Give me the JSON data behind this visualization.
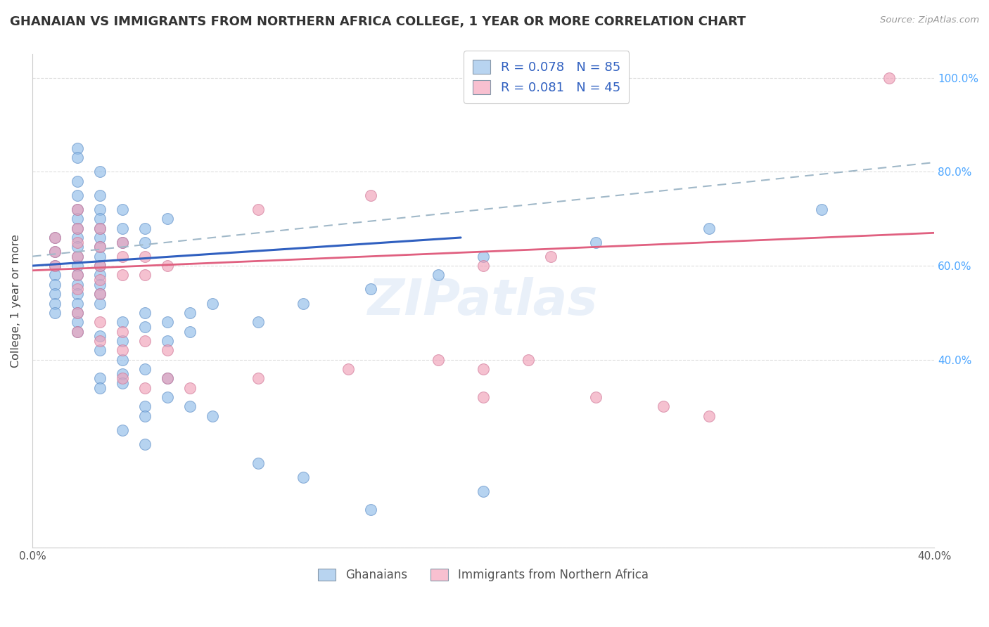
{
  "title": "GHANAIAN VS IMMIGRANTS FROM NORTHERN AFRICA COLLEGE, 1 YEAR OR MORE CORRELATION CHART",
  "source_text": "Source: ZipAtlas.com",
  "ylabel": "College, 1 year or more",
  "xlabel": "",
  "xlim": [
    0.0,
    0.4
  ],
  "ylim": [
    0.0,
    1.05
  ],
  "x_tick_labels": [
    "0.0%",
    "",
    "",
    "",
    "40.0%"
  ],
  "x_ticks": [
    0.0,
    0.1,
    0.2,
    0.3,
    0.4
  ],
  "y_ticks": [
    0.0,
    0.4,
    0.6,
    0.8,
    1.0
  ],
  "y_tick_labels": [
    "",
    "40.0%",
    "60.0%",
    "80.0%",
    "100.0%"
  ],
  "watermark": "ZIPatlas",
  "legend_labels": [
    "Ghanaians",
    "Immigrants from Northern Africa"
  ],
  "blue_color": "#90bce8",
  "pink_color": "#f0a0b8",
  "blue_line_color": "#3060c0",
  "pink_line_color": "#e06080",
  "dashed_line_color": "#a0b8c8",
  "blue_points": [
    [
      0.01,
      0.66
    ],
    [
      0.01,
      0.63
    ],
    [
      0.01,
      0.6
    ],
    [
      0.01,
      0.58
    ],
    [
      0.01,
      0.56
    ],
    [
      0.01,
      0.54
    ],
    [
      0.01,
      0.52
    ],
    [
      0.01,
      0.5
    ],
    [
      0.02,
      0.78
    ],
    [
      0.02,
      0.75
    ],
    [
      0.02,
      0.72
    ],
    [
      0.02,
      0.7
    ],
    [
      0.02,
      0.68
    ],
    [
      0.02,
      0.66
    ],
    [
      0.02,
      0.64
    ],
    [
      0.02,
      0.62
    ],
    [
      0.02,
      0.6
    ],
    [
      0.02,
      0.58
    ],
    [
      0.02,
      0.56
    ],
    [
      0.02,
      0.54
    ],
    [
      0.02,
      0.52
    ],
    [
      0.02,
      0.5
    ],
    [
      0.02,
      0.48
    ],
    [
      0.02,
      0.46
    ],
    [
      0.03,
      0.75
    ],
    [
      0.03,
      0.72
    ],
    [
      0.03,
      0.7
    ],
    [
      0.03,
      0.68
    ],
    [
      0.03,
      0.66
    ],
    [
      0.03,
      0.64
    ],
    [
      0.03,
      0.62
    ],
    [
      0.03,
      0.6
    ],
    [
      0.03,
      0.58
    ],
    [
      0.03,
      0.56
    ],
    [
      0.03,
      0.54
    ],
    [
      0.03,
      0.52
    ],
    [
      0.04,
      0.72
    ],
    [
      0.04,
      0.68
    ],
    [
      0.04,
      0.65
    ],
    [
      0.05,
      0.68
    ],
    [
      0.05,
      0.65
    ],
    [
      0.06,
      0.7
    ],
    [
      0.02,
      0.85
    ],
    [
      0.02,
      0.83
    ],
    [
      0.03,
      0.8
    ],
    [
      0.04,
      0.48
    ],
    [
      0.04,
      0.44
    ],
    [
      0.05,
      0.5
    ],
    [
      0.05,
      0.47
    ],
    [
      0.06,
      0.48
    ],
    [
      0.06,
      0.44
    ],
    [
      0.07,
      0.5
    ],
    [
      0.07,
      0.46
    ],
    [
      0.08,
      0.52
    ],
    [
      0.03,
      0.45
    ],
    [
      0.03,
      0.42
    ],
    [
      0.04,
      0.4
    ],
    [
      0.04,
      0.37
    ],
    [
      0.05,
      0.38
    ],
    [
      0.06,
      0.36
    ],
    [
      0.03,
      0.36
    ],
    [
      0.03,
      0.34
    ],
    [
      0.04,
      0.35
    ],
    [
      0.05,
      0.3
    ],
    [
      0.05,
      0.28
    ],
    [
      0.06,
      0.32
    ],
    [
      0.07,
      0.3
    ],
    [
      0.08,
      0.28
    ],
    [
      0.04,
      0.25
    ],
    [
      0.05,
      0.22
    ],
    [
      0.1,
      0.18
    ],
    [
      0.12,
      0.15
    ],
    [
      0.15,
      0.08
    ],
    [
      0.2,
      0.12
    ],
    [
      0.1,
      0.48
    ],
    [
      0.12,
      0.52
    ],
    [
      0.15,
      0.55
    ],
    [
      0.18,
      0.58
    ],
    [
      0.2,
      0.62
    ],
    [
      0.25,
      0.65
    ],
    [
      0.3,
      0.68
    ],
    [
      0.35,
      0.72
    ]
  ],
  "pink_points": [
    [
      0.01,
      0.66
    ],
    [
      0.01,
      0.63
    ],
    [
      0.01,
      0.6
    ],
    [
      0.02,
      0.72
    ],
    [
      0.02,
      0.68
    ],
    [
      0.02,
      0.65
    ],
    [
      0.02,
      0.62
    ],
    [
      0.02,
      0.58
    ],
    [
      0.02,
      0.55
    ],
    [
      0.03,
      0.68
    ],
    [
      0.03,
      0.64
    ],
    [
      0.03,
      0.6
    ],
    [
      0.03,
      0.57
    ],
    [
      0.03,
      0.54
    ],
    [
      0.04,
      0.65
    ],
    [
      0.04,
      0.62
    ],
    [
      0.04,
      0.58
    ],
    [
      0.05,
      0.62
    ],
    [
      0.05,
      0.58
    ],
    [
      0.06,
      0.6
    ],
    [
      0.02,
      0.5
    ],
    [
      0.02,
      0.46
    ],
    [
      0.03,
      0.48
    ],
    [
      0.03,
      0.44
    ],
    [
      0.04,
      0.46
    ],
    [
      0.04,
      0.42
    ],
    [
      0.05,
      0.44
    ],
    [
      0.06,
      0.42
    ],
    [
      0.04,
      0.36
    ],
    [
      0.05,
      0.34
    ],
    [
      0.06,
      0.36
    ],
    [
      0.07,
      0.34
    ],
    [
      0.1,
      0.36
    ],
    [
      0.14,
      0.38
    ],
    [
      0.18,
      0.4
    ],
    [
      0.2,
      0.38
    ],
    [
      0.22,
      0.4
    ],
    [
      0.1,
      0.72
    ],
    [
      0.15,
      0.75
    ],
    [
      0.2,
      0.6
    ],
    [
      0.25,
      0.32
    ],
    [
      0.28,
      0.3
    ],
    [
      0.3,
      0.28
    ],
    [
      0.38,
      1.0
    ],
    [
      0.2,
      0.32
    ],
    [
      0.23,
      0.62
    ]
  ],
  "blue_line_x": [
    0.0,
    0.19
  ],
  "blue_line_y": [
    0.6,
    0.66
  ],
  "pink_line_x": [
    0.0,
    0.4
  ],
  "pink_line_y": [
    0.59,
    0.67
  ],
  "dashed_line_x": [
    0.0,
    0.4
  ],
  "dashed_line_y": [
    0.62,
    0.82
  ]
}
